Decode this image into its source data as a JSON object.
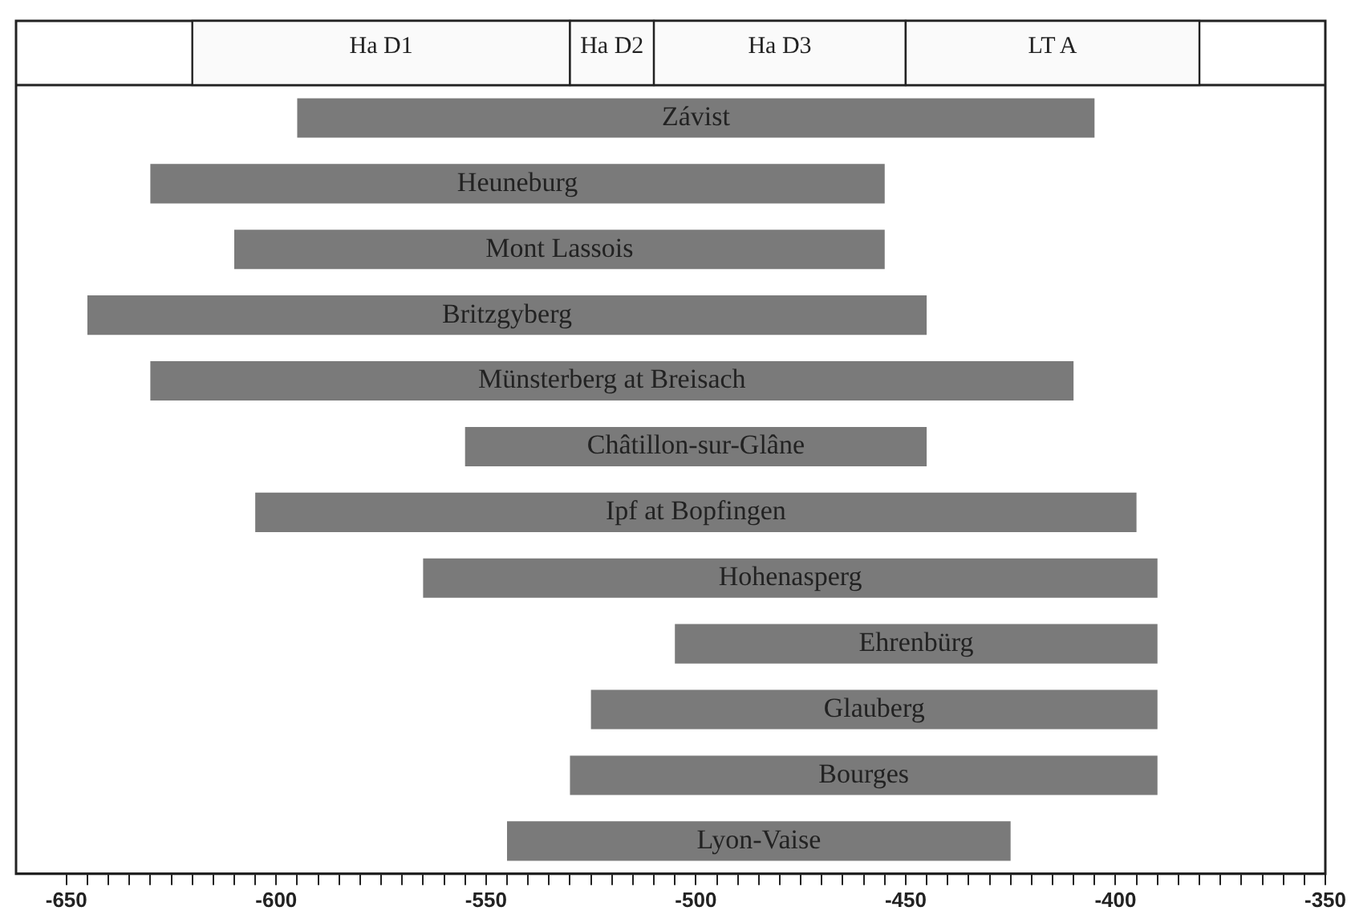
{
  "chart_data": {
    "type": "bar",
    "orientation": "horizontal",
    "legend": false,
    "grid": false,
    "tick_labels": "x",
    "categories": [
      "Závist",
      "Heuneburg",
      "Mont Lassois",
      "Britzgyberg",
      "Münsterberg at Breisach",
      "Châtillon-sur-Glâne",
      "Ipf at Bopfingen",
      "Hohenasperg",
      "Ehrenbürg",
      "Glauberg",
      "Bourges",
      "Lyon-Vaise"
    ],
    "base": [
      -595,
      -630,
      -610,
      -645,
      -630,
      -555,
      -605,
      -565,
      -505,
      -525,
      -530,
      -545
    ],
    "values": [
      190,
      175,
      155,
      200,
      220,
      110,
      210,
      175,
      115,
      135,
      140,
      120
    ],
    "color": "#7a7a7a",
    "xlim": [
      -662,
      -350
    ],
    "xticks": [
      -650,
      {
        "value": -645,
        "label": null
      },
      {
        "value": -640,
        "label": null
      },
      {
        "value": -635,
        "label": null
      },
      {
        "value": -630,
        "label": null
      },
      {
        "value": -625,
        "label": null
      },
      {
        "value": -620,
        "label": null
      },
      {
        "value": -615,
        "label": null
      },
      {
        "value": -610,
        "label": null
      },
      {
        "value": -605,
        "label": null
      },
      -600,
      {
        "value": -595,
        "label": null
      },
      {
        "value": -590,
        "label": null
      },
      {
        "value": -585,
        "label": null
      },
      {
        "value": -580,
        "label": null
      },
      {
        "value": -575,
        "label": null
      },
      {
        "value": -570,
        "label": null
      },
      {
        "value": -565,
        "label": null
      },
      {
        "value": -560,
        "label": null
      },
      {
        "value": -555,
        "label": null
      },
      -550,
      {
        "value": -545,
        "label": null
      },
      {
        "value": -540,
        "label": null
      },
      {
        "value": -535,
        "label": null
      },
      {
        "value": -530,
        "label": null
      },
      {
        "value": -525,
        "label": null
      },
      {
        "value": -520,
        "label": null
      },
      {
        "value": -515,
        "label": null
      },
      {
        "value": -510,
        "label": null
      },
      {
        "value": -505,
        "label": null
      },
      -500,
      {
        "value": -495,
        "label": null
      },
      {
        "value": -490,
        "label": null
      },
      {
        "value": -485,
        "label": null
      },
      {
        "value": -480,
        "label": null
      },
      {
        "value": -475,
        "label": null
      },
      {
        "value": -470,
        "label": null
      },
      {
        "value": -465,
        "label": null
      },
      {
        "value": -460,
        "label": null
      },
      {
        "value": -455,
        "label": null
      },
      -450,
      {
        "value": -445,
        "label": null
      },
      {
        "value": -440,
        "label": null
      },
      {
        "value": -435,
        "label": null
      },
      {
        "value": -430,
        "label": null
      },
      {
        "value": -425,
        "label": null
      },
      {
        "value": -420,
        "label": null
      },
      {
        "value": -415,
        "label": null
      },
      {
        "value": -410,
        "label": null
      },
      {
        "value": -405,
        "label": null
      },
      -400,
      {
        "value": -395,
        "label": null
      },
      {
        "value": -390,
        "label": null
      },
      {
        "value": -385,
        "label": null
      },
      {
        "value": -380,
        "label": null
      },
      {
        "value": -375,
        "label": null
      },
      {
        "value": -370,
        "label": null
      },
      {
        "value": -365,
        "label": null
      },
      {
        "value": -360,
        "label": null
      },
      {
        "value": -355,
        "label": null
      },
      -350
    ],
    "bands": [
      {
        "axis": "x",
        "from": -620,
        "to": -530,
        "label": "Ha D1",
        "color": "#fafafa"
      },
      {
        "axis": "x",
        "from": -530,
        "to": -510,
        "label": "Ha D2",
        "color": "#fafafa"
      },
      {
        "axis": "x",
        "from": -510,
        "to": -450,
        "label": "Ha D3",
        "color": "#fafafa"
      },
      {
        "axis": "x",
        "from": -450,
        "to": -380,
        "label": "LT A",
        "color": "#fafafa"
      }
    ]
  }
}
